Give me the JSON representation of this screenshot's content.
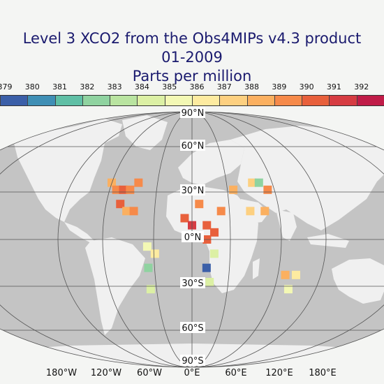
{
  "title": {
    "line1": "Level 3 XCO2 from the Obs4MIPs v4.3 product",
    "line2": "01-2009",
    "line3": "Parts per million"
  },
  "colorbar": {
    "ticks": [
      "379",
      "380",
      "381",
      "382",
      "383",
      "384",
      "385",
      "386",
      "387",
      "388",
      "389",
      "390",
      "391",
      "392"
    ],
    "colors": [
      "#3b5fa8",
      "#3f8fb5",
      "#5fbfa5",
      "#8fd3a0",
      "#b9e4a0",
      "#dcf0a4",
      "#f3f8b4",
      "#fdeba0",
      "#fdd080",
      "#fbb060",
      "#f68a4a",
      "#e8603c",
      "#d63c42",
      "#c01c48"
    ]
  },
  "map": {
    "ocean_color": "#c4c4c4",
    "land_color": "#f0f0f0",
    "lat_labels": [
      "90°N",
      "60°N",
      "30°N",
      "0°N",
      "30°S",
      "60°S",
      "90°S"
    ],
    "lon_labels": [
      "180°W",
      "120°W",
      "60°W",
      "0°E",
      "60°E",
      "120°E",
      "180°E"
    ]
  },
  "chart_data": {
    "type": "heatmap",
    "title": "Level 3 XCO2 from the Obs4MIPs v4.3 product 01-2009 Parts per million",
    "colorbar_range": [
      379,
      392
    ],
    "cells": [
      {
        "lon": -120,
        "lat": 40,
        "value": 388
      },
      {
        "lon": -110,
        "lat": 35,
        "value": 389
      },
      {
        "lon": -100,
        "lat": 35,
        "value": 390
      },
      {
        "lon": -90,
        "lat": 35,
        "value": 389
      },
      {
        "lon": -80,
        "lat": 40,
        "value": 389
      },
      {
        "lon": -100,
        "lat": 25,
        "value": 390
      },
      {
        "lon": -90,
        "lat": 20,
        "value": 388
      },
      {
        "lon": -80,
        "lat": 20,
        "value": 389
      },
      {
        "lon": -60,
        "lat": -5,
        "value": 385
      },
      {
        "lon": -60,
        "lat": -20,
        "value": 382
      },
      {
        "lon": -50,
        "lat": -10,
        "value": 386
      },
      {
        "lon": -60,
        "lat": -35,
        "value": 384
      },
      {
        "lon": -10,
        "lat": 15,
        "value": 390
      },
      {
        "lon": 0,
        "lat": 10,
        "value": 391
      },
      {
        "lon": 10,
        "lat": 25,
        "value": 389
      },
      {
        "lon": 20,
        "lat": 10,
        "value": 390
      },
      {
        "lon": 30,
        "lat": 5,
        "value": 390
      },
      {
        "lon": 20,
        "lat": 0,
        "value": 390
      },
      {
        "lon": 40,
        "lat": 20,
        "value": 389
      },
      {
        "lon": 30,
        "lat": -10,
        "value": 384
      },
      {
        "lon": 20,
        "lat": -20,
        "value": 379
      },
      {
        "lon": 25,
        "lat": -30,
        "value": 384
      },
      {
        "lon": 60,
        "lat": 35,
        "value": 388
      },
      {
        "lon": 90,
        "lat": 40,
        "value": 387
      },
      {
        "lon": 100,
        "lat": 40,
        "value": 382
      },
      {
        "lon": 110,
        "lat": 35,
        "value": 389
      },
      {
        "lon": 80,
        "lat": 20,
        "value": 387
      },
      {
        "lon": 100,
        "lat": 20,
        "value": 388
      },
      {
        "lon": 130,
        "lat": -25,
        "value": 388
      },
      {
        "lon": 145,
        "lat": -25,
        "value": 386
      },
      {
        "lon": 140,
        "lat": -35,
        "value": 385
      }
    ]
  }
}
